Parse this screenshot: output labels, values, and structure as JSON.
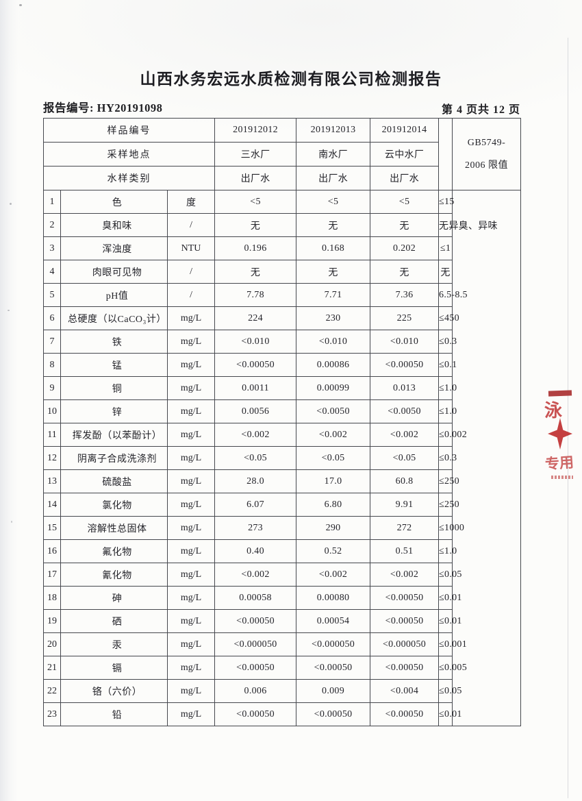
{
  "page": {
    "title": "山西水务宏远水质检测有限公司检测报告",
    "report_no_label": "报告编号:",
    "report_no": "HY20191098",
    "page_info": "第 4 页共 12 页"
  },
  "table": {
    "header": {
      "sample_id_label": "样品编号",
      "sample_ids": [
        "201912012",
        "201912013",
        "201912014"
      ],
      "location_label": "采样地点",
      "locations": [
        "三水厂",
        "南水厂",
        "云中水厂"
      ],
      "type_label": "水样类别",
      "types": [
        "出厂水",
        "出厂水",
        "出厂水"
      ],
      "limit_header_line1": "GB5749-",
      "limit_header_line2": "2006 限值"
    },
    "rows": [
      {
        "no": "1",
        "name": "色",
        "unit": "度",
        "v1": "<5",
        "v2": "<5",
        "v3": "<5",
        "limit": "≤15"
      },
      {
        "no": "2",
        "name": "臭和味",
        "unit": "/",
        "v1": "无",
        "v2": "无",
        "v3": "无",
        "limit": "无异臭、异味"
      },
      {
        "no": "3",
        "name": "浑浊度",
        "unit": "NTU",
        "v1": "0.196",
        "v2": "0.168",
        "v3": "0.202",
        "limit": "≤1"
      },
      {
        "no": "4",
        "name": "肉眼可见物",
        "unit": "/",
        "v1": "无",
        "v2": "无",
        "v3": "无",
        "limit": "无"
      },
      {
        "no": "5",
        "name": "pH值",
        "unit": "/",
        "v1": "7.78",
        "v2": "7.71",
        "v3": "7.36",
        "limit": "6.5-8.5"
      },
      {
        "no": "6",
        "name": "总硬度（以CaCO₃计）",
        "unit": "mg/L",
        "v1": "224",
        "v2": "230",
        "v3": "225",
        "limit": "≤450"
      },
      {
        "no": "7",
        "name": "铁",
        "unit": "mg/L",
        "v1": "<0.010",
        "v2": "<0.010",
        "v3": "<0.010",
        "limit": "≤0.3"
      },
      {
        "no": "8",
        "name": "锰",
        "unit": "mg/L",
        "v1": "<0.00050",
        "v2": "0.00086",
        "v3": "<0.00050",
        "limit": "≤0.1"
      },
      {
        "no": "9",
        "name": "铜",
        "unit": "mg/L",
        "v1": "0.0011",
        "v2": "0.00099",
        "v3": "0.013",
        "limit": "≤1.0"
      },
      {
        "no": "10",
        "name": "锌",
        "unit": "mg/L",
        "v1": "0.0056",
        "v2": "<0.0050",
        "v3": "<0.0050",
        "limit": "≤1.0"
      },
      {
        "no": "11",
        "name": "挥发酚（以苯酚计）",
        "unit": "mg/L",
        "v1": "<0.002",
        "v2": "<0.002",
        "v3": "<0.002",
        "limit": "≤0.002"
      },
      {
        "no": "12",
        "name": "阴离子合成洗涤剂",
        "unit": "mg/L",
        "v1": "<0.05",
        "v2": "<0.05",
        "v3": "<0.05",
        "limit": "≤0.3"
      },
      {
        "no": "13",
        "name": "硫酸盐",
        "unit": "mg/L",
        "v1": "28.0",
        "v2": "17.0",
        "v3": "60.8",
        "limit": "≤250"
      },
      {
        "no": "14",
        "name": "氯化物",
        "unit": "mg/L",
        "v1": "6.07",
        "v2": "6.80",
        "v3": "9.91",
        "limit": "≤250"
      },
      {
        "no": "15",
        "name": "溶解性总固体",
        "unit": "mg/L",
        "v1": "273",
        "v2": "290",
        "v3": "272",
        "limit": "≤1000"
      },
      {
        "no": "16",
        "name": "氟化物",
        "unit": "mg/L",
        "v1": "0.40",
        "v2": "0.52",
        "v3": "0.51",
        "limit": "≤1.0"
      },
      {
        "no": "17",
        "name": "氰化物",
        "unit": "mg/L",
        "v1": "<0.002",
        "v2": "<0.002",
        "v3": "<0.002",
        "limit": "≤0.05"
      },
      {
        "no": "18",
        "name": "砷",
        "unit": "mg/L",
        "v1": "0.00058",
        "v2": "0.00080",
        "v3": "<0.00050",
        "limit": "≤0.01"
      },
      {
        "no": "19",
        "name": "硒",
        "unit": "mg/L",
        "v1": "<0.00050",
        "v2": "0.00054",
        "v3": "<0.00050",
        "limit": "≤0.01"
      },
      {
        "no": "20",
        "name": "汞",
        "unit": "mg/L",
        "v1": "<0.000050",
        "v2": "<0.000050",
        "v3": "<0.000050",
        "limit": "≤0.001"
      },
      {
        "no": "21",
        "name": "镉",
        "unit": "mg/L",
        "v1": "<0.00050",
        "v2": "<0.00050",
        "v3": "<0.00050",
        "limit": "≤0.005"
      },
      {
        "no": "22",
        "name": "铬（六价）",
        "unit": "mg/L",
        "v1": "0.006",
        "v2": "0.009",
        "v3": "<0.004",
        "limit": "≤0.05"
      },
      {
        "no": "23",
        "name": "铅",
        "unit": "mg/L",
        "v1": "<0.00050",
        "v2": "<0.00050",
        "v3": "<0.00050",
        "limit": "≤0.01"
      }
    ]
  },
  "stamp": {
    "color": "#bf3434",
    "char_top": "泳",
    "char_bottom": "专用"
  }
}
